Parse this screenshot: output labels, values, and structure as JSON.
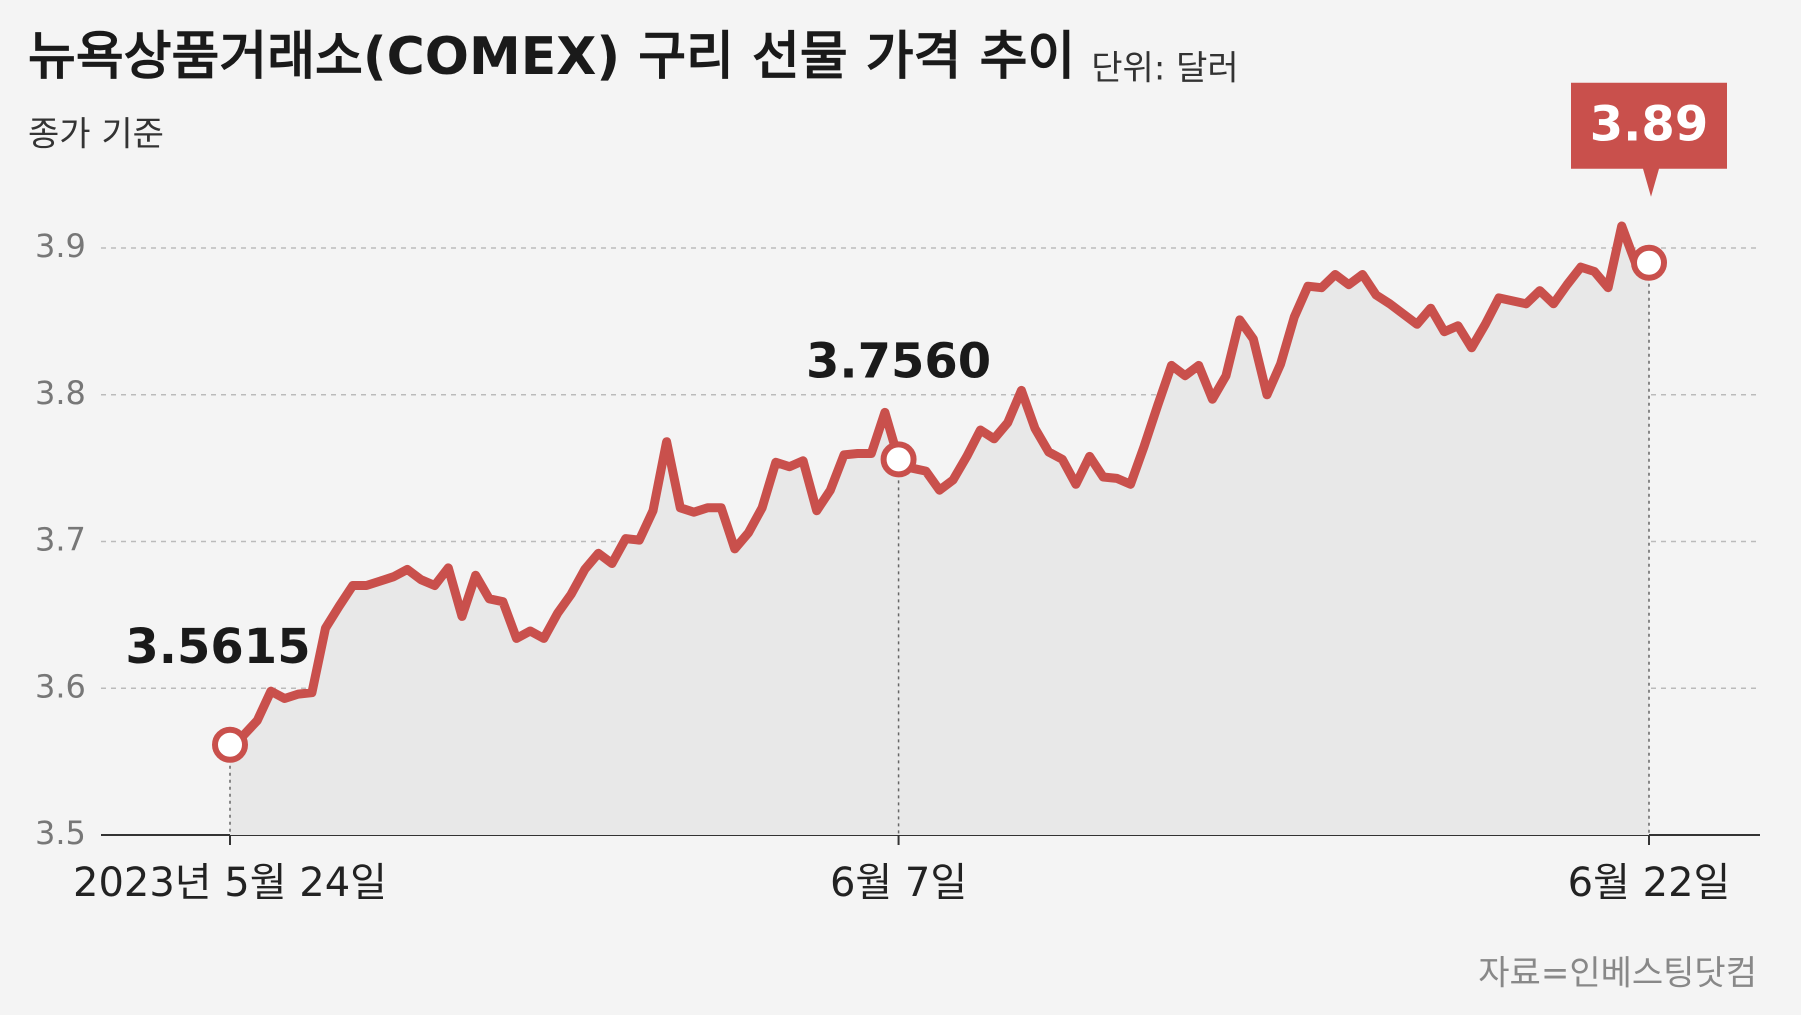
{
  "chart_data": {
    "type": "line",
    "title": "뉴욕상품거래소(COMEX) 구리 선물 가격 추이",
    "unit_label": "단위: 달러",
    "subtitle": "종가 기준",
    "source": "자료=인베스팅닷컴",
    "color": "#c9504c",
    "highlight_color": "#c9504c",
    "area_color": "#e8e8e8",
    "grid": true,
    "ylim": [
      3.5,
      3.96
    ],
    "yticks": [
      3.5,
      3.6,
      3.7,
      3.8,
      3.9
    ],
    "categories": [
      "2023년 5월 24일",
      null,
      null,
      null,
      null,
      null,
      null,
      null,
      null,
      null,
      null,
      null,
      null,
      null,
      null,
      null,
      null,
      null,
      null,
      null,
      null,
      null,
      null,
      null,
      null,
      null,
      null,
      null,
      null,
      null,
      null,
      null,
      null,
      null,
      null,
      null,
      null,
      null,
      null,
      null,
      null,
      null,
      null,
      null,
      null,
      null,
      null,
      null,
      null,
      "6월 7일",
      null,
      null,
      null,
      null,
      null,
      null,
      null,
      null,
      null,
      null,
      null,
      null,
      null,
      null,
      null,
      null,
      null,
      null,
      null,
      null,
      null,
      null,
      null,
      null,
      null,
      null,
      null,
      null,
      null,
      null,
      null,
      null,
      null,
      null,
      null,
      null,
      null,
      null,
      null,
      null,
      null,
      null,
      null,
      null,
      null,
      null,
      null,
      null,
      null,
      null,
      null,
      null,
      null,
      null,
      "6월 22일"
    ],
    "values": [
      3.5615,
      3.568,
      3.578,
      3.598,
      3.593,
      3.596,
      3.597,
      3.641,
      3.656,
      3.67,
      3.67,
      3.673,
      3.676,
      3.681,
      3.674,
      3.67,
      3.682,
      3.649,
      3.677,
      3.661,
      3.659,
      3.634,
      3.639,
      3.634,
      3.651,
      3.664,
      3.681,
      3.692,
      3.685,
      3.702,
      3.701,
      3.721,
      3.768,
      3.723,
      3.72,
      3.723,
      3.723,
      3.695,
      3.706,
      3.723,
      3.754,
      3.751,
      3.755,
      3.721,
      3.735,
      3.759,
      3.76,
      3.76,
      3.788,
      3.756,
      3.75,
      3.748,
      3.735,
      3.742,
      3.758,
      3.776,
      3.77,
      3.781,
      3.803,
      3.777,
      3.761,
      3.756,
      3.739,
      3.758,
      3.744,
      3.743,
      3.739,
      3.765,
      3.793,
      3.82,
      3.813,
      3.82,
      3.797,
      3.813,
      3.851,
      3.838,
      3.8,
      3.821,
      3.853,
      3.874,
      3.873,
      3.882,
      3.875,
      3.882,
      3.868,
      3.862,
      3.855,
      3.848,
      3.859,
      3.843,
      3.847,
      3.832,
      3.848,
      3.866,
      3.864,
      3.862,
      3.871,
      3.862,
      3.875,
      3.887,
      3.884,
      3.873,
      3.915,
      3.89,
      3.89
    ],
    "value_labels": [
      "3.5615",
      null,
      null,
      null,
      null,
      null,
      null,
      null,
      null,
      null,
      null,
      null,
      null,
      null,
      null,
      null,
      null,
      null,
      null,
      null,
      null,
      null,
      null,
      null,
      null,
      null,
      null,
      null,
      null,
      null,
      null,
      null,
      null,
      null,
      null,
      null,
      null,
      null,
      null,
      null,
      null,
      null,
      null,
      null,
      null,
      null,
      null,
      null,
      null,
      "3.7560",
      null,
      null,
      null,
      null,
      null,
      null,
      null,
      null,
      null,
      null,
      null,
      null,
      null,
      null,
      null,
      null,
      null,
      null,
      null,
      null,
      null,
      null,
      null,
      null,
      null,
      null,
      null,
      null,
      null,
      null,
      null,
      null,
      null,
      null,
      null,
      null,
      null,
      null,
      null,
      null,
      null,
      null,
      null,
      null,
      null,
      null,
      null,
      null,
      null,
      null,
      null,
      null,
      null,
      null,
      "3.89"
    ]
  }
}
